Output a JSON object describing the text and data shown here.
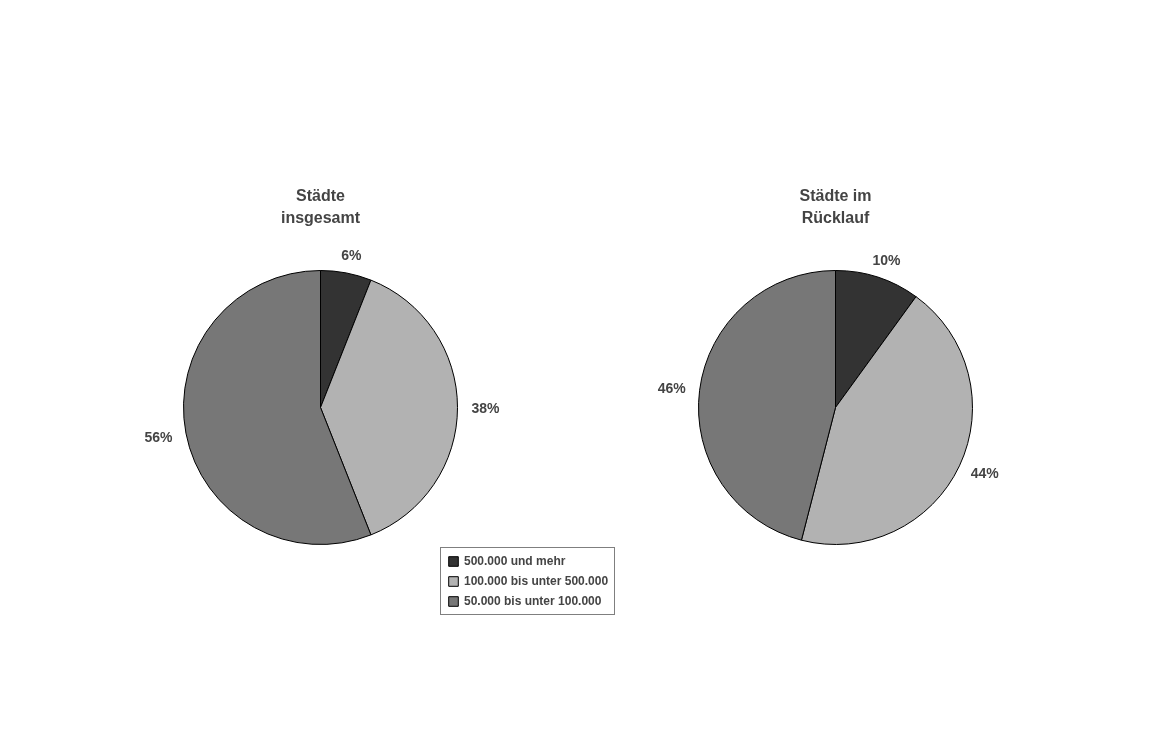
{
  "chart_data": [
    {
      "type": "pie",
      "title": "Städte\ninsgesamt",
      "categories": [
        "500.000 und mehr",
        "100.000 bis unter 500.000",
        "50.000 bis unter 100.000"
      ],
      "values": [
        6,
        38,
        56
      ],
      "value_labels": [
        "6%",
        "38%",
        "56%"
      ],
      "colors": [
        "#333333",
        "#b2b2b2",
        "#777777"
      ],
      "legend": "bottom right"
    },
    {
      "type": "pie",
      "title": "Städte im\nRücklauf",
      "values": [
        10,
        44,
        46
      ],
      "value_labels": [
        "10%",
        "44%",
        "46%"
      ],
      "colors": [
        "#333333",
        "#b2b2b2",
        "#777777"
      ]
    }
  ]
}
